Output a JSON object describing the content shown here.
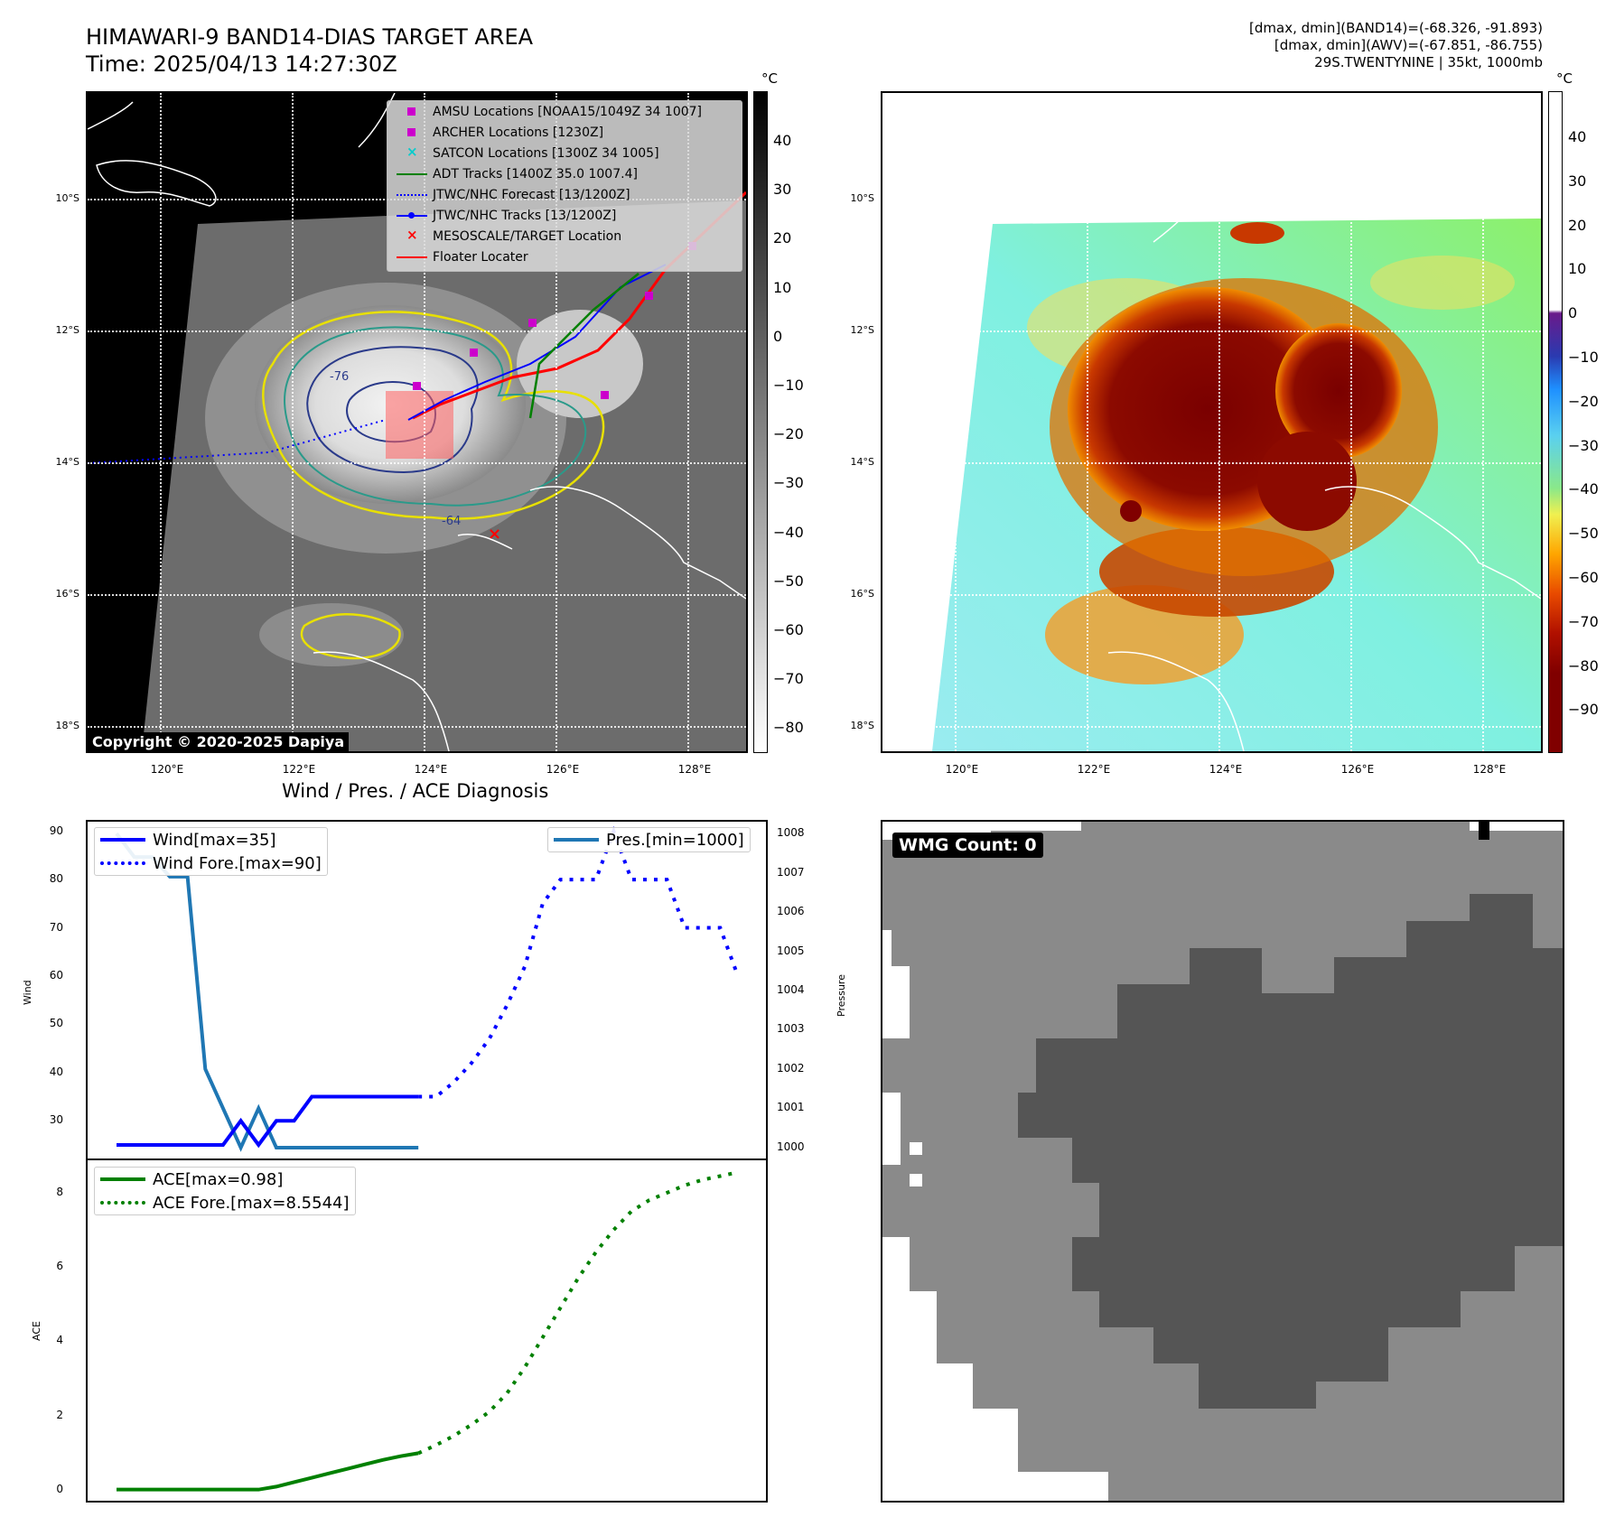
{
  "header": {
    "title_line1": "HIMAWARI-9 BAND14-DIAS TARGET AREA",
    "title_line2": "Time: 2025/04/13 14:27:30Z",
    "info_line1": "[dmax, dmin](BAND14)=(-68.326, -91.893)",
    "info_line2": "[dmax, dmin](AWV)=(-67.851, -86.755)",
    "info_line3": "29S.TWENTYNINE | 35kt, 1000mb"
  },
  "map_axes": {
    "lat_labels": [
      "10°S",
      "12°S",
      "14°S",
      "16°S",
      "18°S"
    ],
    "lon_labels": [
      "120°E",
      "122°E",
      "124°E",
      "126°E",
      "128°E"
    ]
  },
  "colorbar1": {
    "unit": "°C",
    "ticks": [
      "40",
      "30",
      "20",
      "10",
      "0",
      "−10",
      "−20",
      "−30",
      "−40",
      "−50",
      "−60",
      "−70",
      "−80"
    ]
  },
  "colorbar2": {
    "unit": "°C",
    "ticks": [
      "40",
      "30",
      "20",
      "10",
      "0",
      "−10",
      "−20",
      "−30",
      "−40",
      "−50",
      "−60",
      "−70",
      "−80",
      "−90"
    ]
  },
  "legend_map": [
    {
      "label": "AMSU Locations [NOAA15/1049Z 34 1007]",
      "color": "#cc00cc",
      "symbol": "square"
    },
    {
      "label": "ARCHER Locations [1230Z]",
      "color": "#cc00cc",
      "symbol": "square"
    },
    {
      "label": "SATCON Locations [1300Z 34 1005]",
      "color": "#00cccc",
      "symbol": "x"
    },
    {
      "label": "ADT Tracks [1400Z 35.0 1007.4]",
      "color": "#008000",
      "symbol": "line"
    },
    {
      "label": "JTWC/NHC Forecast [13/1200Z]",
      "color": "#0000ff",
      "symbol": "dotted"
    },
    {
      "label": "JTWC/NHC Tracks [13/1200Z]",
      "color": "#0000ff",
      "symbol": "line-dot"
    },
    {
      "label": "MESOSCALE/TARGET Location",
      "color": "#ff0000",
      "symbol": "x"
    },
    {
      "label": "Floater Locater",
      "color": "#ff0000",
      "symbol": "line"
    }
  ],
  "contour_labels": [
    "-76",
    "-64"
  ],
  "copyright": "Copyright © 2020-2025 Dapiya",
  "wmg": {
    "label": "WMG Count: 0"
  },
  "diagnosis": {
    "title": "Wind / Pres. / ACE Diagnosis",
    "wind_ylabel": "Wind",
    "pres_ylabel": "Pressure",
    "ace_ylabel": "ACE",
    "legend_wind": "Wind[max=35]",
    "legend_wind_fore": "Wind Fore.[max=90]",
    "legend_pres": "Pres.[min=1000]",
    "legend_ace": "ACE[max=0.98]",
    "legend_ace_fore": "ACE Fore.[max=8.5544]",
    "wind_yticks": [
      "90",
      "80",
      "70",
      "60",
      "50",
      "40",
      "30"
    ],
    "pres_yticks": [
      "1008",
      "1007",
      "1006",
      "1005",
      "1004",
      "1003",
      "1002",
      "1001",
      "1000"
    ],
    "ace_yticks": [
      "8",
      "6",
      "4",
      "2",
      "0"
    ]
  },
  "chart_data": [
    {
      "type": "line",
      "title": "Wind / Pres. / ACE Diagnosis",
      "ylabel": "Wind",
      "ylim": [
        22,
        92
      ],
      "series": [
        {
          "name": "Wind[max=35]",
          "x": [
            0,
            1,
            2,
            3,
            4,
            5,
            6,
            7,
            8,
            9,
            10,
            11,
            12,
            13,
            14,
            15,
            16,
            17
          ],
          "values": [
            25,
            25,
            25,
            25,
            25,
            25,
            25,
            30,
            25,
            30,
            30,
            35,
            35,
            35,
            35,
            35,
            35,
            35
          ],
          "color": "#0000ff",
          "style": "solid"
        },
        {
          "name": "Wind Fore.[max=90]",
          "x": [
            17,
            18,
            19,
            20,
            21,
            22,
            23,
            24,
            25,
            26,
            27,
            28,
            29,
            30,
            31,
            32,
            33,
            34,
            35
          ],
          "values": [
            35,
            35,
            38,
            42,
            47,
            54,
            62,
            75,
            80,
            80,
            80,
            90,
            80,
            80,
            80,
            70,
            70,
            70,
            60
          ],
          "color": "#0000ff",
          "style": "dotted"
        }
      ]
    },
    {
      "type": "line",
      "ylabel": "Pressure",
      "ylim": [
        999.7,
        1008.3
      ],
      "series": [
        {
          "name": "Pres.[min=1000]",
          "x": [
            0,
            1,
            2,
            3,
            4,
            5,
            6,
            7,
            8,
            9,
            10,
            11,
            12,
            13,
            14,
            15,
            16,
            17
          ],
          "values": [
            1008,
            1007.4,
            1007.4,
            1006.9,
            1006.9,
            1002,
            1001,
            1000,
            1001,
            1000,
            1000,
            1000,
            1000,
            1000,
            1000,
            1000,
            1000,
            1000
          ],
          "color": "#1f77b4",
          "style": "solid"
        }
      ]
    },
    {
      "type": "line",
      "ylabel": "ACE",
      "ylim": [
        -0.3,
        8.9
      ],
      "series": [
        {
          "name": "ACE[max=0.98]",
          "x": [
            0,
            1,
            2,
            3,
            4,
            5,
            6,
            7,
            8,
            9,
            10,
            11,
            12,
            13,
            14,
            15,
            16,
            17
          ],
          "values": [
            0,
            0,
            0,
            0,
            0,
            0,
            0,
            0,
            0,
            0.08,
            0.2,
            0.32,
            0.44,
            0.56,
            0.68,
            0.8,
            0.9,
            0.98
          ],
          "color": "#008000",
          "style": "solid"
        },
        {
          "name": "ACE Fore.[max=8.5544]",
          "x": [
            17,
            18,
            19,
            20,
            21,
            22,
            23,
            24,
            25,
            26,
            27,
            28,
            29,
            30,
            31,
            32,
            33,
            34,
            35
          ],
          "values": [
            0.98,
            1.2,
            1.45,
            1.75,
            2.1,
            2.6,
            3.3,
            4.1,
            4.9,
            5.7,
            6.4,
            7.0,
            7.5,
            7.8,
            8.0,
            8.2,
            8.35,
            8.45,
            8.5544
          ],
          "color": "#008000",
          "style": "dotted"
        }
      ]
    }
  ]
}
